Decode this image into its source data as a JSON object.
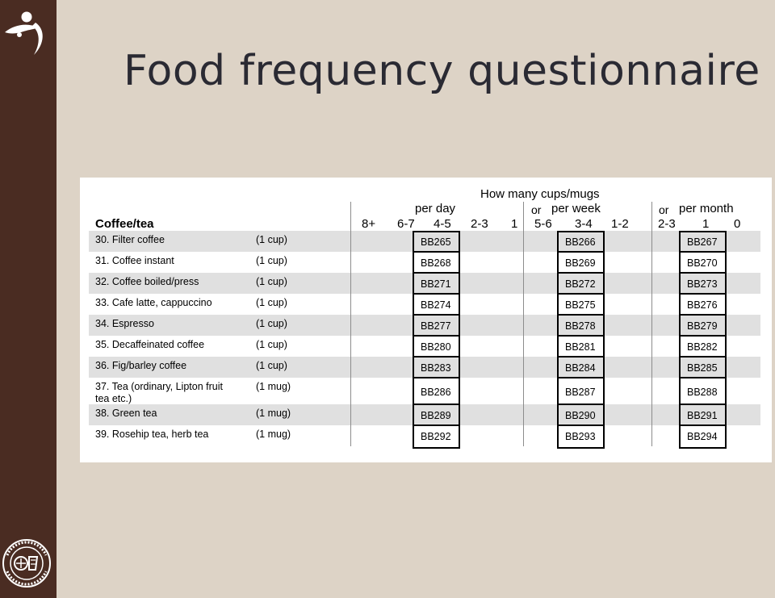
{
  "slide": {
    "title": "Food frequency questionnaire"
  },
  "questionnaire": {
    "section_title": "Coffee/tea",
    "question_header": "How many cups/mugs",
    "per_day_label": "per day",
    "or_label_1": "or",
    "per_week_label": "per week",
    "or_label_2": "or",
    "per_month_label": "per month",
    "freq_day": [
      "8+",
      "6-7",
      "4-5",
      "2-3",
      "1"
    ],
    "freq_week": [
      "5-6",
      "3-4",
      "1-2"
    ],
    "freq_month": [
      "2-3",
      "1",
      "0"
    ],
    "rows": [
      {
        "label": "30.  Filter coffee",
        "unit": "(1 cup)",
        "day_code": "BB265",
        "week_code": "BB266",
        "month_code": "BB267"
      },
      {
        "label": "31.  Coffee instant",
        "unit": "(1 cup)",
        "day_code": "BB268",
        "week_code": "BB269",
        "month_code": "BB270"
      },
      {
        "label": "32.  Coffee boiled/press",
        "unit": "(1 cup)",
        "day_code": "BB271",
        "week_code": "BB272",
        "month_code": "BB273"
      },
      {
        "label": "33.  Cafe latte, cappuccino",
        "unit": "(1 cup)",
        "day_code": "BB274",
        "week_code": "BB275",
        "month_code": "BB276"
      },
      {
        "label": "34.  Espresso",
        "unit": "(1 cup)",
        "day_code": "BB277",
        "week_code": "BB278",
        "month_code": "BB279"
      },
      {
        "label": "35.  Decaffeinated coffee",
        "unit": "(1 cup)",
        "day_code": "BB280",
        "week_code": "BB281",
        "month_code": "BB282"
      },
      {
        "label": "36.  Fig/barley coffee",
        "unit": "(1 cup)",
        "day_code": "BB283",
        "week_code": "BB284",
        "month_code": "BB285"
      },
      {
        "label": "37.  Tea (ordinary, Lipton fruit",
        "label_line2": "tea etc.)",
        "unit": "(1 mug)",
        "day_code": "BB286",
        "week_code": "BB287",
        "month_code": "BB288"
      },
      {
        "label": "38.  Green tea",
        "unit": "(1 mug)",
        "day_code": "BB289",
        "week_code": "BB290",
        "month_code": "BB291"
      },
      {
        "label": "39.  Rosehip tea, herb tea",
        "unit": "(1 mug)",
        "day_code": "BB292",
        "week_code": "BB293",
        "month_code": "BB294"
      }
    ]
  },
  "colors": {
    "sidebar": "#4a2c22",
    "background": "#ddd3c6",
    "row_shade": "#e0e0e0",
    "title": "#2a2a33"
  },
  "icons": {
    "top_logo": "university-figure-logo",
    "bottom_logo": "university-seal-logo",
    "bottom_logo_text": "UNIVERSITAS GOTHOBURGENSIS 1891"
  }
}
